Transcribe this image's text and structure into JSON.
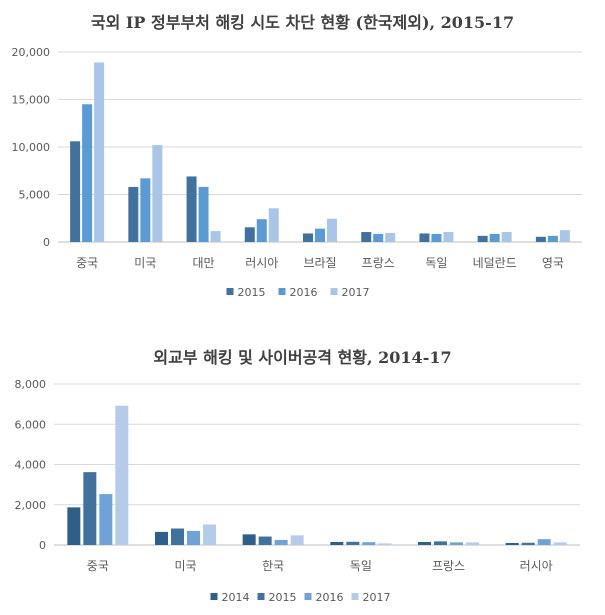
{
  "chart_data": [
    {
      "type": "bar",
      "title": "국외 IP 정부부처 해킹 시도 차단 현황 (한국제외), 2015-17",
      "categories": [
        "중국",
        "미국",
        "대만",
        "러시아",
        "브라질",
        "프랑스",
        "독일",
        "네덜란드",
        "영국"
      ],
      "series": [
        {
          "name": "2015",
          "color": "#41729F",
          "values": [
            10600,
            5800,
            6900,
            1550,
            900,
            1050,
            900,
            650,
            550
          ]
        },
        {
          "name": "2016",
          "color": "#5B9BD5",
          "values": [
            14500,
            6700,
            5800,
            2400,
            1400,
            850,
            850,
            850,
            650
          ]
        },
        {
          "name": "2017",
          "color": "#A9C6E8",
          "values": [
            18900,
            10200,
            1150,
            3550,
            2450,
            950,
            1050,
            1050,
            1250
          ]
        }
      ],
      "ylim": [
        0,
        20000
      ],
      "yticks": [
        "0",
        "5,000",
        "10,000",
        "15,000",
        "20,000"
      ],
      "ytick_values": [
        0,
        5000,
        10000,
        15000,
        20000
      ],
      "grid": true,
      "legend": "bottom"
    },
    {
      "type": "bar",
      "title": "외교부 해킹 및 사이버공격 현황, 2014-17",
      "categories": [
        "중국",
        "미국",
        "한국",
        "독일",
        "프랑스",
        "러시아"
      ],
      "series": [
        {
          "name": "2014",
          "color": "#2E5F8A",
          "values": [
            1870,
            650,
            530,
            150,
            150,
            100
          ]
        },
        {
          "name": "2015",
          "color": "#41729F",
          "values": [
            3620,
            820,
            420,
            160,
            180,
            110
          ]
        },
        {
          "name": "2016",
          "color": "#6FA3D8",
          "values": [
            2530,
            700,
            250,
            140,
            130,
            290
          ]
        },
        {
          "name": "2017",
          "color": "#B4CCE9",
          "values": [
            6920,
            1020,
            480,
            80,
            130,
            130
          ]
        }
      ],
      "ylim": [
        0,
        8000
      ],
      "yticks": [
        "0",
        "2,000",
        "4,000",
        "6,000",
        "8,000"
      ],
      "ytick_values": [
        0,
        2000,
        4000,
        6000,
        8000
      ],
      "grid": true,
      "legend": "bottom"
    }
  ]
}
